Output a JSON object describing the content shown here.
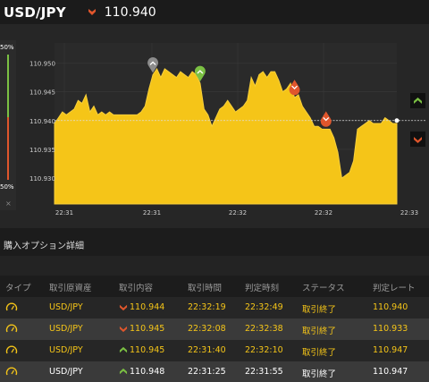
{
  "header": {
    "pair": "USD/JPY",
    "rate": "110.940",
    "direction_icon": "down-arrow-icon",
    "direction_color": "#e0562c"
  },
  "gauge": {
    "top_label": "50%",
    "bottom_label": "50%",
    "close_symbol": "×"
  },
  "chart": {
    "y_ticks": [
      "110.950",
      "110.945",
      "110.940",
      "110.935",
      "110.930"
    ],
    "x_ticks": [
      "22:31",
      "22:31",
      "22:32",
      "22:32",
      "22:33"
    ],
    "current_rate": 110.94,
    "fill_color": "#f5c518",
    "series": [
      110.9395,
      110.9405,
      110.9415,
      110.941,
      110.9415,
      110.942,
      110.9435,
      110.943,
      110.9445,
      110.9415,
      110.9425,
      110.941,
      110.9415,
      110.941,
      110.9415,
      110.941,
      110.941,
      110.941,
      110.941,
      110.941,
      110.941,
      110.941,
      110.9415,
      110.9425,
      110.9455,
      110.948,
      110.949,
      110.9475,
      110.949,
      110.9485,
      110.948,
      110.9475,
      110.9485,
      110.948,
      110.9475,
      110.9485,
      110.948,
      110.9465,
      110.942,
      110.941,
      110.939,
      110.9405,
      110.942,
      110.9425,
      110.9435,
      110.9425,
      110.9415,
      110.942,
      110.9425,
      110.9435,
      110.9475,
      110.946,
      110.948,
      110.9485,
      110.9475,
      110.9485,
      110.9485,
      110.947,
      110.945,
      110.9455,
      110.9465,
      110.944,
      110.9445,
      110.9425,
      110.9415,
      110.9405,
      110.939,
      110.939,
      110.9385,
      110.9385,
      110.9385,
      110.937,
      110.9345,
      110.93,
      110.9305,
      110.931,
      110.933,
      110.9385,
      110.939,
      110.9395,
      110.94,
      110.9395,
      110.9395,
      110.9395,
      110.9405,
      110.94,
      110.9395,
      110.9395
    ],
    "markers": [
      {
        "icon": "up-arrow-pin-icon",
        "color": "#8c8c8c",
        "index": 25
      },
      {
        "icon": "up-arrow-pin-icon",
        "color": "#7bc043",
        "index": 37
      },
      {
        "icon": "down-arrow-pin-icon",
        "color": "#e0562c",
        "index": 61
      },
      {
        "icon": "down-arrow-pin-icon",
        "color": "#e0562c",
        "index": 69
      }
    ],
    "side_buttons": [
      {
        "icon": "up-arrow-icon",
        "color": "#7bc043"
      },
      {
        "icon": "down-arrow-icon",
        "color": "#e0562c"
      }
    ]
  },
  "section": {
    "title": "購入オプション詳細"
  },
  "table": {
    "headers": [
      "タイプ",
      "取引原資産",
      "取引内容",
      "取引時間",
      "判定時刻",
      "ステータス",
      "判定レート"
    ],
    "rows": [
      {
        "type_icon": "gauge-icon",
        "asset": "USD/JPY",
        "dir_icon": "down-arrow-icon",
        "dir_color": "#e0562c",
        "content": "110.944",
        "trade_time": "22:32:19",
        "judge_time": "22:32:49",
        "status": "取引終了",
        "judge_rate": "110.940"
      },
      {
        "type_icon": "gauge-icon",
        "asset": "USD/JPY",
        "dir_icon": "down-arrow-icon",
        "dir_color": "#e0562c",
        "content": "110.945",
        "trade_time": "22:32:08",
        "judge_time": "22:32:38",
        "status": "取引終了",
        "judge_rate": "110.933"
      },
      {
        "type_icon": "gauge-icon",
        "asset": "USD/JPY",
        "dir_icon": "up-arrow-icon",
        "dir_color": "#7bc043",
        "content": "110.945",
        "trade_time": "22:31:40",
        "judge_time": "22:32:10",
        "status": "取引終了",
        "judge_rate": "110.947"
      },
      {
        "type_icon": "gauge-icon",
        "asset": "USD/JPY",
        "dir_icon": "up-arrow-icon",
        "dir_color": "#7bc043",
        "content": "110.948",
        "trade_time": "22:31:25",
        "judge_time": "22:31:55",
        "status": "取引終了",
        "judge_rate": "110.947"
      }
    ]
  }
}
